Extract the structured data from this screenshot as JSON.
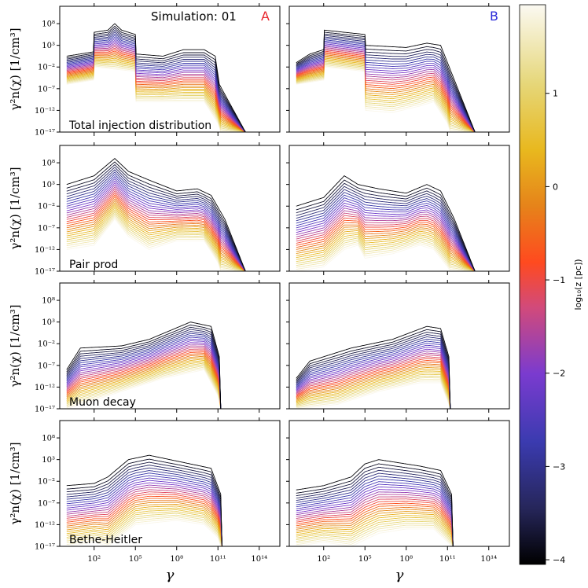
{
  "title": "Simulation: 01",
  "columns": [
    {
      "label": "A",
      "color": "#e8262d"
    },
    {
      "label": "B",
      "color": "#2a2ad8"
    }
  ],
  "rows": [
    {
      "label": "Total injection distribution"
    },
    {
      "label": "Pair prod"
    },
    {
      "label": "Muon decay"
    },
    {
      "label": "Bethe-Heitler"
    }
  ],
  "xlabel": "γ",
  "ylabel": "γ²n(χ) [1/cm³]",
  "x_ticks": [
    {
      "exp": 2,
      "label": "10²"
    },
    {
      "exp": 5,
      "label": "10⁵"
    },
    {
      "exp": 8,
      "label": "10⁸"
    },
    {
      "exp": 11,
      "label": "10¹¹"
    },
    {
      "exp": 14,
      "label": "10¹⁴"
    }
  ],
  "y_ticks": [
    {
      "exp": -17,
      "label": "10⁻¹⁷"
    },
    {
      "exp": -12,
      "label": "10⁻¹²"
    },
    {
      "exp": -7,
      "label": "10⁻⁷"
    },
    {
      "exp": -2,
      "label": "10⁻²"
    },
    {
      "exp": 3,
      "label": "10³"
    },
    {
      "exp": 8,
      "label": "10⁸"
    }
  ],
  "colorbar": {
    "label": "log₁₀(z [pc])",
    "range": [
      -4.05,
      1.95
    ],
    "ticks": [
      {
        "value": -4,
        "label": "−4"
      },
      {
        "value": -3,
        "label": "−3"
      },
      {
        "value": -2,
        "label": "−2"
      },
      {
        "value": -1,
        "label": "−1"
      },
      {
        "value": 0,
        "label": "0"
      },
      {
        "value": 1,
        "label": "1"
      }
    ],
    "colormap": "CMRmap"
  },
  "chart_data": {
    "type": "line",
    "x_scale": "log",
    "y_scale": "log",
    "xlim_log10": [
      -0.5,
      15.5
    ],
    "ylim_log10": [
      -17,
      12
    ],
    "n_curves_per_panel": 30,
    "z_log10_range": [
      -4,
      1.9
    ],
    "panels": [
      {
        "row": "Total injection distribution",
        "column": "A",
        "envelope_top_log10": [
          [
            0,
            0.5
          ],
          [
            1.95,
            1.5
          ],
          [
            2,
            6
          ],
          [
            3,
            6.5
          ],
          [
            3.5,
            8
          ],
          [
            4,
            6.5
          ],
          [
            5,
            5.5
          ],
          [
            5.02,
            1
          ],
          [
            7,
            0.5
          ],
          [
            8.5,
            2
          ],
          [
            10,
            2
          ],
          [
            10.8,
            0.5
          ],
          [
            11.1,
            -6
          ],
          [
            13,
            -17
          ]
        ],
        "envelope_bottom_log10": [
          [
            0,
            -6
          ],
          [
            1.95,
            -5
          ],
          [
            2,
            -2
          ],
          [
            5,
            -3
          ],
          [
            5.02,
            -10
          ],
          [
            8,
            -10
          ],
          [
            10,
            -10
          ],
          [
            11,
            -15
          ],
          [
            11.2,
            -17
          ]
        ]
      },
      {
        "row": "Total injection distribution",
        "column": "B",
        "envelope_top_log10": [
          [
            0,
            -1
          ],
          [
            1,
            1
          ],
          [
            2,
            2
          ],
          [
            2.05,
            6.5
          ],
          [
            5,
            5.5
          ],
          [
            5.02,
            3
          ],
          [
            8,
            2.5
          ],
          [
            9.5,
            3.5
          ],
          [
            10.5,
            3
          ],
          [
            11.5,
            -5
          ],
          [
            13,
            -17
          ]
        ],
        "envelope_bottom_log10": [
          [
            0,
            -6
          ],
          [
            2,
            -5
          ],
          [
            2.05,
            -2
          ],
          [
            5,
            -3
          ],
          [
            5.02,
            -12
          ],
          [
            7,
            -12.5
          ],
          [
            9,
            -11
          ],
          [
            10,
            -10
          ],
          [
            11,
            -15
          ],
          [
            11.2,
            -17
          ]
        ]
      },
      {
        "row": "Pair prod",
        "column": "A",
        "envelope_top_log10": [
          [
            0,
            3
          ],
          [
            2,
            5
          ],
          [
            3.5,
            9
          ],
          [
            4.5,
            6
          ],
          [
            6,
            4
          ],
          [
            8,
            1.5
          ],
          [
            9.5,
            2
          ],
          [
            10.5,
            0.5
          ],
          [
            11.5,
            -5
          ],
          [
            13,
            -17
          ]
        ],
        "envelope_bottom_log10": [
          [
            0,
            -12
          ],
          [
            2,
            -11
          ],
          [
            3.5,
            -5
          ],
          [
            4.5,
            -9
          ],
          [
            6,
            -12
          ],
          [
            8,
            -10
          ],
          [
            10,
            -10
          ],
          [
            11,
            -15
          ],
          [
            11.2,
            -17
          ]
        ]
      },
      {
        "row": "Pair prod",
        "column": "B",
        "envelope_top_log10": [
          [
            0,
            -2
          ],
          [
            2,
            0
          ],
          [
            3.5,
            5
          ],
          [
            4.5,
            3
          ],
          [
            6,
            2
          ],
          [
            8,
            1
          ],
          [
            9.5,
            3
          ],
          [
            10.5,
            1.5
          ],
          [
            11.5,
            -5
          ],
          [
            13,
            -17
          ]
        ],
        "envelope_bottom_log10": [
          [
            0,
            -17
          ],
          [
            2,
            -16
          ],
          [
            3.5,
            -12
          ],
          [
            4.5,
            -11
          ],
          [
            5,
            -14
          ],
          [
            7,
            -13
          ],
          [
            9,
            -11
          ],
          [
            10,
            -12
          ],
          [
            11,
            -16
          ],
          [
            11.2,
            -17
          ]
        ]
      },
      {
        "row": "Muon decay",
        "column": "A",
        "envelope_top_log10": [
          [
            0,
            -8
          ],
          [
            1,
            -3
          ],
          [
            4,
            -2.5
          ],
          [
            6,
            -1
          ],
          [
            9,
            3
          ],
          [
            10.5,
            2
          ],
          [
            11.1,
            -5
          ],
          [
            11.2,
            -17
          ]
        ],
        "envelope_bottom_log10": [
          [
            0,
            -17
          ],
          [
            2,
            -15
          ],
          [
            4,
            -13
          ],
          [
            7,
            -10
          ],
          [
            10,
            -8
          ],
          [
            11,
            -14
          ],
          [
            11.2,
            -17
          ]
        ]
      },
      {
        "row": "Muon decay",
        "column": "B",
        "envelope_top_log10": [
          [
            0,
            -10
          ],
          [
            1,
            -6
          ],
          [
            4,
            -3
          ],
          [
            7,
            -1
          ],
          [
            9.5,
            2
          ],
          [
            10.5,
            1.5
          ],
          [
            11.1,
            -5
          ],
          [
            11.2,
            -17
          ]
        ],
        "envelope_bottom_log10": [
          [
            0,
            -17
          ],
          [
            3,
            -16
          ],
          [
            6,
            -13
          ],
          [
            9,
            -11
          ],
          [
            10.5,
            -11
          ],
          [
            11.1,
            -16
          ],
          [
            11.2,
            -17
          ]
        ]
      },
      {
        "row": "Bethe-Heitler",
        "column": "A",
        "envelope_top_log10": [
          [
            0,
            -3
          ],
          [
            2,
            -2.5
          ],
          [
            3,
            -1
          ],
          [
            4.5,
            3
          ],
          [
            6,
            4
          ],
          [
            9,
            2
          ],
          [
            10.5,
            1
          ],
          [
            11.2,
            -5
          ],
          [
            11.3,
            -17
          ]
        ],
        "envelope_bottom_log10": [
          [
            0,
            -17
          ],
          [
            2,
            -16
          ],
          [
            3,
            -17
          ],
          [
            5,
            -12
          ],
          [
            8,
            -11
          ],
          [
            10,
            -12
          ],
          [
            11,
            -15
          ],
          [
            11.2,
            -17
          ]
        ]
      },
      {
        "row": "Bethe-Heitler",
        "column": "B",
        "envelope_top_log10": [
          [
            0,
            -4
          ],
          [
            2,
            -3
          ],
          [
            4,
            -1
          ],
          [
            5,
            2
          ],
          [
            6,
            3
          ],
          [
            9,
            1.5
          ],
          [
            10.5,
            0.5
          ],
          [
            11.3,
            -5
          ],
          [
            11.4,
            -17
          ]
        ],
        "envelope_bottom_log10": [
          [
            0,
            -17
          ],
          [
            2,
            -16
          ],
          [
            4,
            -17
          ],
          [
            6,
            -14
          ],
          [
            8,
            -13
          ],
          [
            10,
            -13
          ],
          [
            11,
            -16
          ],
          [
            11.3,
            -17
          ]
        ]
      }
    ]
  }
}
